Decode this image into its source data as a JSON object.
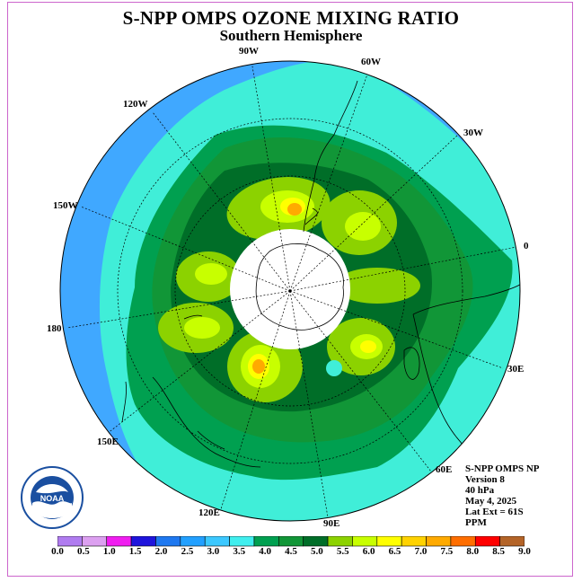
{
  "title": "S-NPP OMPS OZONE MIXING RATIO",
  "subtitle": "Southern Hemisphere",
  "longitude_labels": [
    "90W",
    "60W",
    "120W",
    "30W",
    "150W",
    "0",
    "180",
    "30E",
    "150E",
    "60E",
    "120E",
    "90E"
  ],
  "info": {
    "instrument": "S-NPP OMPS NP",
    "version": "Version 8",
    "pressure": "40 hPa",
    "date": "May 4, 2025",
    "lat_ext": "Lat Ext = 61S",
    "units": "PPM"
  },
  "colorbar": {
    "labels": [
      "0.0",
      "0.5",
      "1.0",
      "1.5",
      "2.0",
      "2.5",
      "3.0",
      "3.5",
      "4.0",
      "4.5",
      "5.0",
      "5.5",
      "6.0",
      "6.5",
      "7.0",
      "7.5",
      "8.0",
      "8.5",
      "9.0"
    ],
    "colors": [
      "#b07cf0",
      "#dca0f0",
      "#f01ef0",
      "#1e14dc",
      "#1e78f0",
      "#22a0ff",
      "#3cc8ff",
      "#40eeee",
      "#00a050",
      "#119637",
      "#006e28",
      "#8cd200",
      "#c8ff00",
      "#ffff00",
      "#ffd200",
      "#ffaa00",
      "#ff6e00",
      "#ff0000",
      "#b46428"
    ]
  },
  "logo_text": "NOAA",
  "colors": {
    "ocean_outer": "#40a8ff",
    "band_35": "#40eed8",
    "band_45": "#119637",
    "band_50": "#006e28",
    "band_55": "#8cd200",
    "band_60": "#c8ff00",
    "band_65": "#ffff00",
    "band_70": "#ffaa00",
    "polar_night": "#ffffff"
  }
}
